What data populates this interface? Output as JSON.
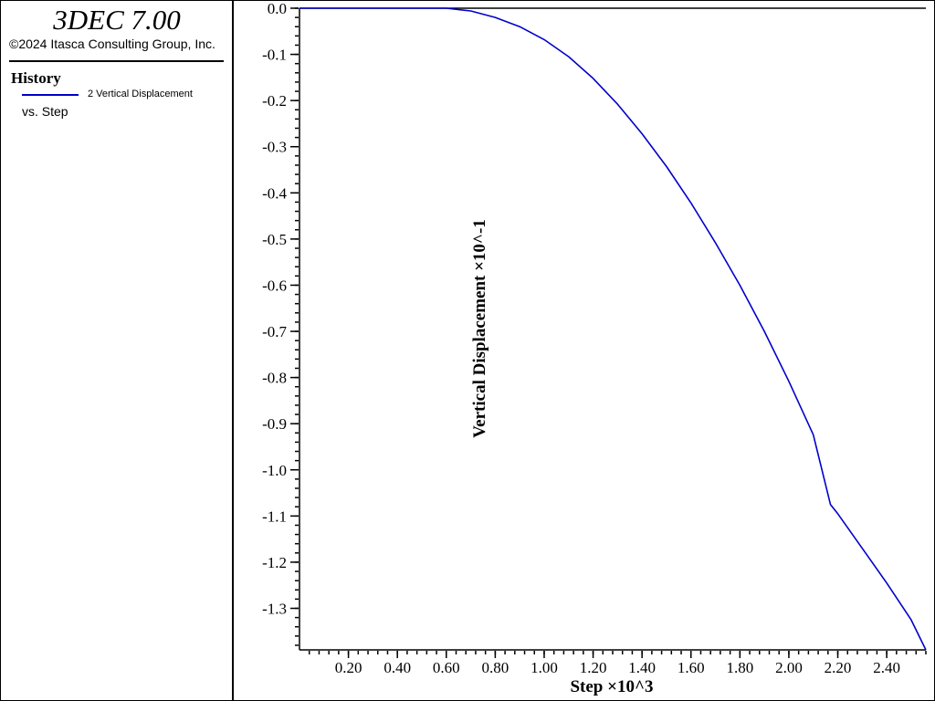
{
  "app": {
    "title": "3DEC 7.00",
    "copyright": "©2024 Itasca Consulting Group, Inc."
  },
  "legend": {
    "section_title": "History",
    "series_label": "2 Vertical Displacement",
    "vs_label": "vs. Step",
    "series_color": "#0000cc"
  },
  "chart_data": {
    "type": "line",
    "xlabel": "Step ×10^3",
    "ylabel": "Vertical Displacement ×10^-1",
    "xlim": [
      0,
      2.56
    ],
    "ylim": [
      -1.39,
      0.0
    ],
    "x_ticks": [
      0.2,
      0.4,
      0.6,
      0.8,
      1.0,
      1.2,
      1.4,
      1.6,
      1.8,
      2.0,
      2.2,
      2.4
    ],
    "x_tick_labels": [
      "0.20",
      "0.40",
      "0.60",
      "0.80",
      "1.00",
      "1.20",
      "1.40",
      "1.60",
      "1.80",
      "2.00",
      "2.20",
      "2.40"
    ],
    "y_ticks": [
      0.0,
      -0.1,
      -0.2,
      -0.3,
      -0.4,
      -0.5,
      -0.6,
      -0.7,
      -0.8,
      -0.9,
      -1.0,
      -1.1,
      -1.2,
      -1.3
    ],
    "y_tick_labels": [
      "0.0",
      "-0.1",
      "-0.2",
      "-0.3",
      "-0.4",
      "-0.5",
      "-0.6",
      "-0.7",
      "-0.8",
      "-0.9",
      "-1.0",
      "-1.1",
      "-1.2",
      "-1.3"
    ],
    "grid": false,
    "series": [
      {
        "name": "2 Vertical Displacement",
        "color": "#0000cc",
        "x": [
          0.0,
          0.4,
          0.6,
          0.7,
          0.8,
          0.9,
          1.0,
          1.1,
          1.2,
          1.3,
          1.4,
          1.5,
          1.6,
          1.7,
          1.8,
          1.9,
          2.0,
          2.1,
          2.17,
          2.2,
          2.3,
          2.4,
          2.5,
          2.56
        ],
        "y": [
          0.0,
          0.0,
          0.0,
          -0.006,
          -0.02,
          -0.04,
          -0.068,
          -0.105,
          -0.152,
          -0.208,
          -0.272,
          -0.343,
          -0.422,
          -0.508,
          -0.6,
          -0.7,
          -0.808,
          -0.924,
          -1.075,
          -1.095,
          -1.17,
          -1.245,
          -1.325,
          -1.39
        ]
      }
    ]
  }
}
